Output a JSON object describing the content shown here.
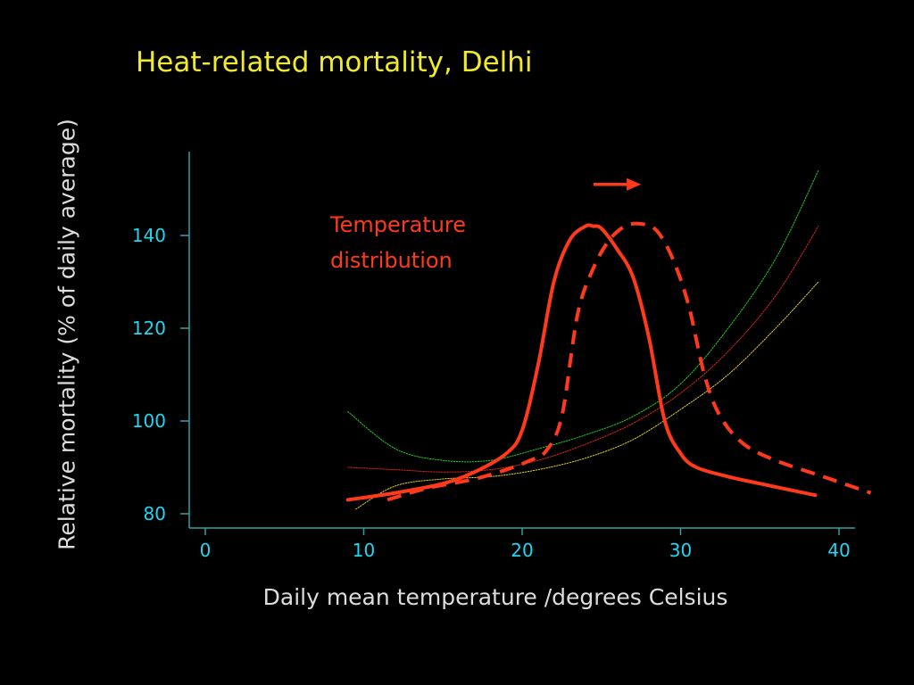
{
  "slide": {
    "title": "Heat-related mortality, Delhi",
    "ylabel": "Relative mortality (% of daily average)",
    "xlabel": "Daily mean temperature /degrees Celsius",
    "annotation": [
      "Temperature",
      "distribution"
    ]
  },
  "colors": {
    "background": "#000000",
    "title": "#f0ea2a",
    "axis_labels": "#dddddd",
    "tick_labels": "#21d6f0",
    "axis_line": "#2aa5a5",
    "distribution": "#ff3a1a",
    "upper_ci": "#22cc22",
    "estimate": "#dd2222",
    "lower_ci": "#e0d020"
  },
  "chart_data": {
    "type": "line",
    "title": "Heat-related mortality, Delhi",
    "xlabel": "Daily mean temperature /degrees Celsius",
    "ylabel": "Relative mortality (% of daily average)",
    "xlim": [
      0,
      42
    ],
    "ylim": [
      80,
      160
    ],
    "x_ticks": [
      0,
      10,
      20,
      30,
      40
    ],
    "y_ticks": [
      80,
      100,
      120,
      140
    ],
    "grid": false,
    "series": [
      {
        "key": "upper",
        "color": "#22cc22",
        "style": "thin",
        "x": [
          9,
          12,
          15,
          18,
          21,
          24,
          27,
          30,
          33,
          36,
          38.7
        ],
        "y": [
          102,
          94,
          91.5,
          91.5,
          94,
          97,
          101,
          108,
          120,
          135,
          154
        ]
      },
      {
        "key": "estimate",
        "color": "#dd2222",
        "style": "thin",
        "x": [
          9,
          12,
          15,
          18,
          21,
          24,
          27,
          30,
          33,
          36,
          38.7
        ],
        "y": [
          90,
          89.5,
          89,
          89.5,
          91.5,
          95,
          99.5,
          106,
          115,
          127,
          142
        ]
      },
      {
        "key": "lower",
        "color": "#e0d020",
        "style": "thin",
        "x": [
          9.5,
          12,
          15,
          18,
          21,
          24,
          27,
          30,
          33,
          36,
          38.7
        ],
        "y": [
          81,
          86,
          87.5,
          88,
          89.5,
          92,
          96,
          102.5,
          110,
          120,
          130
        ]
      },
      {
        "key": "current",
        "color": "#ff3a1a",
        "style": "solid",
        "x": [
          9,
          12,
          15,
          17,
          19,
          20,
          21,
          22,
          23,
          24,
          24.5,
          25,
          26,
          27,
          28,
          29,
          30,
          31,
          33,
          35,
          38.5
        ],
        "y": [
          83,
          84.5,
          86.5,
          89,
          93,
          98,
          112,
          130,
          139,
          142,
          142,
          141.5,
          137,
          131,
          118,
          100,
          93,
          90,
          88,
          86.5,
          84
        ]
      },
      {
        "key": "shifted",
        "color": "#ff3a1a",
        "style": "dashed",
        "x": [
          11.5,
          14,
          17,
          19,
          20.5,
          21.5,
          22.5,
          23.5,
          24.5,
          25.5,
          26.5,
          27.5,
          28.5,
          29.5,
          30.5,
          31.5,
          32.5,
          34,
          36,
          39,
          42
        ],
        "y": [
          83,
          85.5,
          87.5,
          89.5,
          91.5,
          93.5,
          101,
          123,
          133,
          139,
          142,
          142.5,
          141,
          135,
          125,
          110,
          101,
          95,
          91.5,
          88,
          84.5
        ]
      }
    ],
    "shift_arrow": {
      "from_x": 24.5,
      "to_x": 27.5,
      "y": 151
    }
  }
}
